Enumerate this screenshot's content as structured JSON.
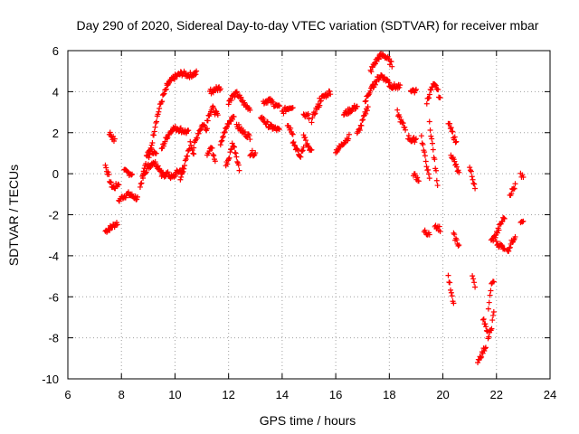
{
  "chart_data": {
    "type": "scatter",
    "title": "Day 290 of 2020, Sidereal Day-to-day VTEC variation (SDTVAR) for receiver mbar",
    "xlabel": "GPS time / hours",
    "ylabel": "SDTVAR / TECUs",
    "xlim": [
      6,
      24
    ],
    "ylim": [
      -10,
      6
    ],
    "xticks": [
      6,
      8,
      10,
      12,
      14,
      16,
      18,
      20,
      22,
      24
    ],
    "yticks": [
      -10,
      -8,
      -6,
      -4,
      -2,
      0,
      2,
      4,
      6
    ],
    "grid": true,
    "marker": "+",
    "color": "#ff0000",
    "series": [
      {
        "name": "SDTVAR",
        "segments": [
          {
            "x0": 7.4,
            "x1": 7.85,
            "y": [
              -2.8,
              -2.7,
              -2.6,
              -2.5,
              -2.4
            ]
          },
          {
            "x0": 7.4,
            "x1": 7.9,
            "y": [
              0.4,
              0.0,
              -0.5,
              -0.7,
              -0.6,
              -0.5
            ]
          },
          {
            "x0": 7.55,
            "x1": 7.75,
            "y": [
              2.0,
              1.8,
              1.6
            ]
          },
          {
            "x0": 7.9,
            "x1": 8.6,
            "y": [
              -1.3,
              -1.1,
              -1.0,
              -1.1,
              -1.2
            ]
          },
          {
            "x0": 8.1,
            "x1": 8.4,
            "y": [
              0.1,
              0.0
            ]
          },
          {
            "x0": 8.7,
            "x1": 9.3,
            "y": [
              -0.7,
              0.0,
              0.8,
              1.2,
              1.1,
              0.9
            ]
          },
          {
            "x0": 8.8,
            "x1": 9.6,
            "y": [
              0.0,
              0.3,
              0.6,
              0.3,
              -0.1
            ]
          },
          {
            "x0": 9.0,
            "x1": 9.7,
            "y": [
              0.5,
              1.5,
              2.5,
              3.2,
              3.8,
              4.2
            ]
          },
          {
            "x0": 9.7,
            "x1": 10.8,
            "y": [
              4.3,
              4.7,
              4.9,
              4.8,
              4.9
            ]
          },
          {
            "x0": 9.5,
            "x1": 10.5,
            "y": [
              1.2,
              1.8,
              2.2,
              2.2,
              2.1,
              2.0
            ]
          },
          {
            "x0": 9.5,
            "x1": 10.3,
            "y": [
              -0.1,
              0.0,
              -0.2,
              0.1,
              0.2
            ]
          },
          {
            "x0": 10.2,
            "x1": 10.7,
            "y": [
              -0.3,
              0.3,
              0.8,
              1.5,
              1.0
            ]
          },
          {
            "x0": 10.7,
            "x1": 11.2,
            "y": [
              1.3,
              2.0,
              2.4,
              2.2
            ]
          },
          {
            "x0": 11.2,
            "x1": 11.6,
            "y": [
              2.6,
              3.0,
              3.2,
              3.0,
              2.8
            ]
          },
          {
            "x0": 11.3,
            "x1": 11.7,
            "y": [
              4.0,
              4.1,
              4.2
            ]
          },
          {
            "x0": 11.2,
            "x1": 11.5,
            "y": [
              1.0,
              1.3,
              0.7
            ]
          },
          {
            "x0": 11.7,
            "x1": 12.2,
            "y": [
              1.5,
              2.0,
              2.3,
              2.6,
              2.8
            ]
          },
          {
            "x0": 11.9,
            "x1": 12.4,
            "y": [
              0.4,
              0.8,
              1.5,
              1.0,
              0.2
            ]
          },
          {
            "x0": 12.0,
            "x1": 12.8,
            "y": [
              3.5,
              3.8,
              3.9,
              3.6,
              3.3,
              3.2
            ]
          },
          {
            "x0": 12.3,
            "x1": 12.8,
            "y": [
              2.4,
              2.0,
              1.8
            ]
          },
          {
            "x0": 12.8,
            "x1": 13.0,
            "y": [
              1.0
            ]
          },
          {
            "x0": 13.3,
            "x1": 13.9,
            "y": [
              3.5,
              3.6,
              3.4,
              3.2
            ]
          },
          {
            "x0": 13.2,
            "x1": 13.9,
            "y": [
              2.8,
              2.5,
              2.3,
              2.2,
              2.1
            ]
          },
          {
            "x0": 14.0,
            "x1": 14.4,
            "y": [
              3.0,
              3.2,
              3.3
            ]
          },
          {
            "x0": 14.2,
            "x1": 14.4,
            "y": [
              2.4,
              2.0
            ]
          },
          {
            "x0": 14.4,
            "x1": 14.8,
            "y": [
              1.6,
              1.2,
              0.8,
              1.3
            ]
          },
          {
            "x0": 14.8,
            "x1": 15.1,
            "y": [
              2.0,
              1.5,
              1.2,
              1.1
            ]
          },
          {
            "x0": 14.8,
            "x1": 15.0,
            "y": [
              2.8
            ]
          },
          {
            "x0": 15.1,
            "x1": 15.4,
            "y": [
              2.6,
              3.1,
              3.4
            ]
          },
          {
            "x0": 15.4,
            "x1": 15.8,
            "y": [
              3.6,
              3.8,
              4.0
            ]
          },
          {
            "x0": 16.0,
            "x1": 16.5,
            "y": [
              1.1,
              1.3,
              1.6,
              1.8
            ]
          },
          {
            "x0": 16.3,
            "x1": 16.8,
            "y": [
              2.9,
              3.1,
              3.3
            ]
          },
          {
            "x0": 16.8,
            "x1": 17.2,
            "y": [
              1.9,
              2.3,
              2.8,
              3.3
            ]
          },
          {
            "x0": 17.1,
            "x1": 17.4,
            "y": [
              3.5,
              4.0,
              4.3
            ]
          },
          {
            "x0": 17.3,
            "x1": 18.1,
            "y": [
              5.0,
              5.4,
              5.7,
              5.8,
              5.6,
              5.3
            ]
          },
          {
            "x0": 17.4,
            "x1": 18.0,
            "y": [
              4.3,
              4.6,
              4.8,
              4.6,
              4.5
            ]
          },
          {
            "x0": 18.0,
            "x1": 18.4,
            "y": [
              4.3,
              4.2
            ]
          },
          {
            "x0": 18.3,
            "x1": 18.6,
            "y": [
              3.0,
              2.5,
              2.2
            ]
          },
          {
            "x0": 18.7,
            "x1": 19.0,
            "y": [
              1.8,
              1.6,
              1.7
            ]
          },
          {
            "x0": 18.8,
            "x1": 19.0,
            "y": [
              4.1,
              4.0
            ]
          },
          {
            "x0": 18.9,
            "x1": 19.1,
            "y": [
              0.0,
              -0.3
            ]
          },
          {
            "x0": 19.2,
            "x1": 19.5,
            "y": [
              1.8,
              1.0,
              0.4,
              -0.3
            ]
          },
          {
            "x0": 19.3,
            "x1": 19.5,
            "y": [
              -2.8,
              -3.0
            ]
          },
          {
            "x0": 19.4,
            "x1": 19.9,
            "y": [
              3.5,
              4.0,
              4.3,
              4.2,
              3.6
            ]
          },
          {
            "x0": 19.5,
            "x1": 19.8,
            "y": [
              2.5,
              1.5,
              0.5,
              -0.5
            ]
          },
          {
            "x0": 19.7,
            "x1": 19.9,
            "y": [
              -2.5,
              -2.7
            ]
          },
          {
            "x0": 20.2,
            "x1": 20.4,
            "y": [
              -5.0,
              -5.5,
              -6.0,
              -6.4
            ]
          },
          {
            "x0": 20.2,
            "x1": 20.5,
            "y": [
              2.5,
              2.0,
              1.5
            ]
          },
          {
            "x0": 20.3,
            "x1": 20.6,
            "y": [
              1.0,
              0.5,
              0.0
            ]
          },
          {
            "x0": 20.4,
            "x1": 20.6,
            "y": [
              -3.0,
              -3.5
            ]
          },
          {
            "x0": 21.0,
            "x1": 21.2,
            "y": [
              0.3,
              -0.2,
              -0.6
            ]
          },
          {
            "x0": 21.1,
            "x1": 21.2,
            "y": [
              -5.0,
              -5.6
            ]
          },
          {
            "x0": 21.3,
            "x1": 21.6,
            "y": [
              -9.1,
              -8.8,
              -8.4
            ]
          },
          {
            "x0": 21.5,
            "x1": 21.9,
            "y": [
              -7.0,
              -7.5,
              -8.0,
              -7.6,
              -6.8
            ]
          },
          {
            "x0": 21.7,
            "x1": 21.9,
            "y": [
              -6.5,
              -5.5,
              -5.2
            ]
          },
          {
            "x0": 21.8,
            "x1": 22.3,
            "y": [
              -3.3,
              -3.1,
              -2.8,
              -2.4,
              -2.1
            ]
          },
          {
            "x0": 22.0,
            "x1": 22.3,
            "y": [
              -3.4,
              -3.6
            ]
          },
          {
            "x0": 22.4,
            "x1": 22.7,
            "y": [
              -3.8,
              -3.4,
              -3.0
            ]
          },
          {
            "x0": 22.5,
            "x1": 22.7,
            "y": [
              -1.0,
              -0.6
            ]
          },
          {
            "x0": 22.9,
            "x1": 23.0,
            "y": [
              -2.4
            ]
          },
          {
            "x0": 22.9,
            "x1": 23.0,
            "y": [
              -0.1
            ]
          }
        ]
      }
    ]
  }
}
